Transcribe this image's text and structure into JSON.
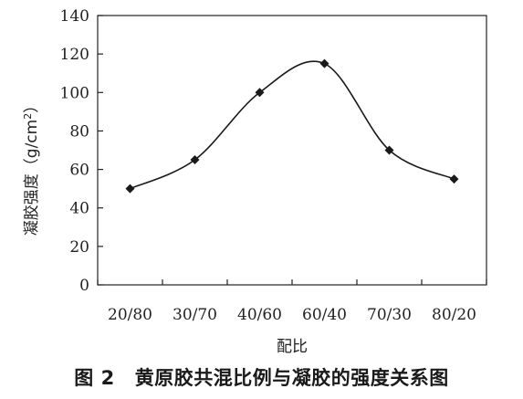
{
  "caption": {
    "figure_number": "图 2",
    "text": "黄原胶共混比例与凝胶的强度关系图"
  },
  "chart_data": {
    "type": "line",
    "categories": [
      "20/80",
      "30/70",
      "40/60",
      "60/40",
      "70/30",
      "80/20"
    ],
    "values": [
      50,
      65,
      100,
      115,
      70,
      55
    ],
    "marker": "diamond",
    "line": "smooth",
    "xlabel": "配比",
    "ylabel": "凝胶强度（g/cm",
    "ylabel_superscript": "2",
    "ylabel_close": "）",
    "ylim": [
      0,
      140
    ],
    "yticks": [
      0,
      20,
      40,
      60,
      80,
      100,
      120,
      140
    ],
    "grid": false,
    "colors": {
      "line": "#1a1a1a",
      "marker": "#1a1a1a",
      "axis": "#222222"
    }
  }
}
